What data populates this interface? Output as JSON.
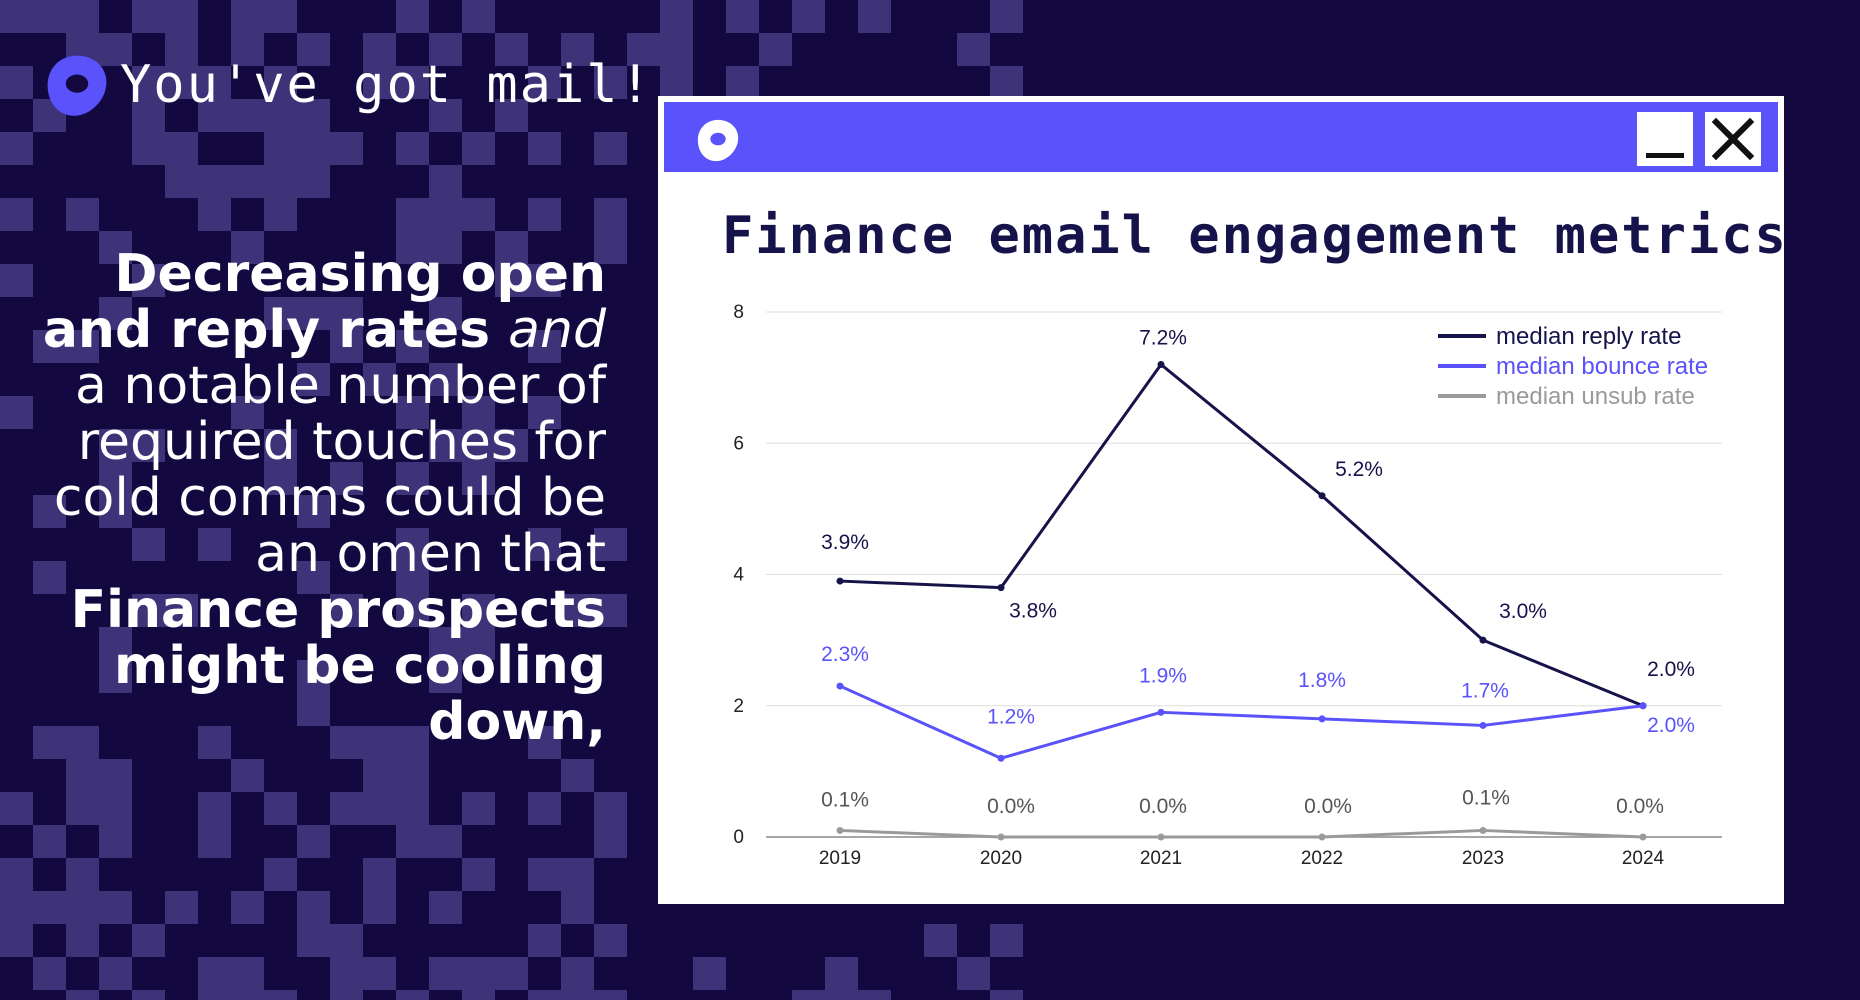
{
  "brand": {
    "text": "You've got mail!"
  },
  "headline": {
    "segments": [
      {
        "text": "Decreasing open and reply rates ",
        "style": "bold"
      },
      {
        "text": "and",
        "style": "italic"
      },
      {
        "text": " a notable number of required touches for cold comms could be an omen that ",
        "style": "regular"
      },
      {
        "text": "Finance prospects might be cooling down,",
        "style": "bold"
      }
    ]
  },
  "colors": {
    "background": "#130840",
    "pattern": "#3e3378",
    "accent": "#5a52fa",
    "reply_line": "#16124a",
    "bounce_line": "#5a52fa",
    "unsub_line": "#9a9a9a"
  },
  "window": {
    "minimize_icon": "minimize-icon",
    "close_icon": "close-icon"
  },
  "chart_data": {
    "type": "line",
    "title": "Finance email engagement metrics",
    "xlabel": "",
    "ylabel": "",
    "x": [
      "2019",
      "2020",
      "2021",
      "2022",
      "2023",
      "2024"
    ],
    "ylim": [
      0,
      8
    ],
    "yticks": [
      "0",
      "2",
      "4",
      "6",
      "8"
    ],
    "grid": true,
    "legend_position": "top-right",
    "series": [
      {
        "name": "median reply rate",
        "color": "#16124a",
        "values": [
          3.9,
          3.8,
          7.2,
          5.2,
          3.0,
          2.0
        ],
        "labels": [
          "3.9%",
          "3.8%",
          "7.2%",
          "5.2%",
          "3.0%",
          "2.0%"
        ]
      },
      {
        "name": "median bounce rate",
        "color": "#5a52fa",
        "values": [
          2.3,
          1.2,
          1.9,
          1.8,
          1.7,
          2.0
        ],
        "labels": [
          "2.3%",
          "1.2%",
          "1.9%",
          "1.8%",
          "1.7%",
          "2.0%"
        ]
      },
      {
        "name": "median unsub rate",
        "color": "#9a9a9a",
        "values": [
          0.1,
          0.0,
          0.0,
          0.0,
          0.1,
          0.0
        ],
        "labels": [
          "0.1%",
          "0.0%",
          "0.0%",
          "0.0%",
          "0.1%",
          "0.0%"
        ]
      }
    ]
  }
}
